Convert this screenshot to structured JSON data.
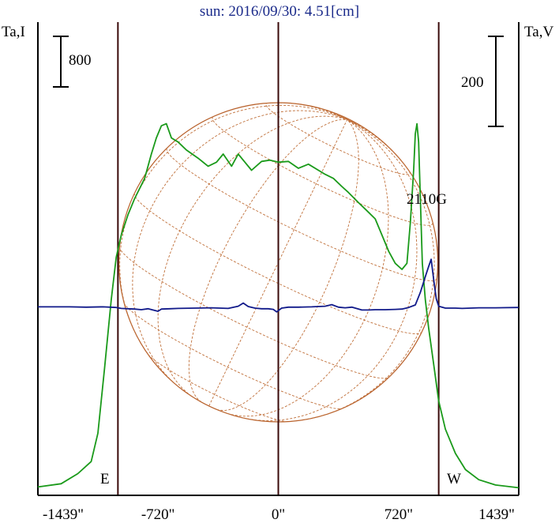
{
  "chart_data": {
    "type": "line",
    "title": "sun: 2016/09/30: 4.51[cm]",
    "left_axis_label": "Ta,I",
    "right_axis_label": "Ta,V",
    "left_scale_bar": "800",
    "right_scale_bar": "200",
    "annotation": "2110G",
    "east_label": "E",
    "west_label": "W",
    "x_ticks": [
      {
        "label": "-1439\"",
        "value": -1439
      },
      {
        "label": "-720\"",
        "value": -720
      },
      {
        "label": "0\"",
        "value": 0
      },
      {
        "label": "720\"",
        "value": 720
      },
      {
        "label": "1439\"",
        "value": 1439
      }
    ],
    "xlim": [
      -1439,
      1439
    ],
    "limb_markers": [
      -960,
      0,
      960
    ],
    "series": [
      {
        "color": "#1a9a1a",
        "points": [
          [
            -1439,
            7
          ],
          [
            -1300,
            15
          ],
          [
            -1200,
            40
          ],
          [
            -1120,
            70
          ],
          [
            -1080,
            140
          ],
          [
            -1040,
            300
          ],
          [
            -1000,
            470
          ],
          [
            -970,
            575
          ],
          [
            -940,
            630
          ],
          [
            -900,
            680
          ],
          [
            -860,
            720
          ],
          [
            -800,
            770
          ],
          [
            -760,
            830
          ],
          [
            -730,
            870
          ],
          [
            -700,
            900
          ],
          [
            -670,
            905
          ],
          [
            -640,
            870
          ],
          [
            -600,
            860
          ],
          [
            -550,
            840
          ],
          [
            -480,
            820
          ],
          [
            -420,
            800
          ],
          [
            -370,
            810
          ],
          [
            -330,
            830
          ],
          [
            -280,
            800
          ],
          [
            -240,
            830
          ],
          [
            -200,
            810
          ],
          [
            -160,
            790
          ],
          [
            -100,
            812
          ],
          [
            -50,
            815
          ],
          [
            0,
            810
          ],
          [
            60,
            812
          ],
          [
            120,
            795
          ],
          [
            180,
            805
          ],
          [
            240,
            790
          ],
          [
            280,
            780
          ],
          [
            330,
            770
          ],
          [
            380,
            750
          ],
          [
            420,
            735
          ],
          [
            480,
            710
          ],
          [
            530,
            690
          ],
          [
            580,
            670
          ],
          [
            620,
            630
          ],
          [
            660,
            590
          ],
          [
            700,
            560
          ],
          [
            740,
            545
          ],
          [
            770,
            560
          ],
          [
            790,
            660
          ],
          [
            810,
            790
          ],
          [
            820,
            880
          ],
          [
            830,
            905
          ],
          [
            840,
            860
          ],
          [
            850,
            720
          ],
          [
            862,
            560
          ],
          [
            880,
            470
          ],
          [
            900,
            400
          ],
          [
            930,
            310
          ],
          [
            960,
            220
          ],
          [
            1000,
            150
          ],
          [
            1060,
            90
          ],
          [
            1120,
            50
          ],
          [
            1200,
            25
          ],
          [
            1300,
            12
          ],
          [
            1439,
            5
          ]
        ]
      },
      {
        "color": "#111a8a",
        "points": [
          [
            -1439,
            4
          ],
          [
            -1250,
            4
          ],
          [
            -1150,
            3
          ],
          [
            -1050,
            4
          ],
          [
            -970,
            2
          ],
          [
            -940,
            -1
          ],
          [
            -900,
            -2
          ],
          [
            -860,
            -3
          ],
          [
            -820,
            -5
          ],
          [
            -780,
            -2
          ],
          [
            -720,
            -10
          ],
          [
            -700,
            -3
          ],
          [
            -650,
            -2
          ],
          [
            -600,
            -1
          ],
          [
            -500,
            0
          ],
          [
            -400,
            1
          ],
          [
            -300,
            -1
          ],
          [
            -240,
            6
          ],
          [
            -210,
            16
          ],
          [
            -180,
            5
          ],
          [
            -140,
            0
          ],
          [
            -100,
            -2
          ],
          [
            -60,
            -2
          ],
          [
            -30,
            -4
          ],
          [
            -10,
            -12
          ],
          [
            20,
            0
          ],
          [
            60,
            3
          ],
          [
            120,
            3
          ],
          [
            200,
            4
          ],
          [
            280,
            6
          ],
          [
            320,
            11
          ],
          [
            360,
            3
          ],
          [
            400,
            1
          ],
          [
            440,
            3
          ],
          [
            500,
            -6
          ],
          [
            540,
            -6
          ],
          [
            580,
            -5
          ],
          [
            640,
            -5
          ],
          [
            700,
            -4
          ],
          [
            740,
            -3
          ],
          [
            780,
            2
          ],
          [
            820,
            10
          ],
          [
            850,
            50
          ],
          [
            880,
            100
          ],
          [
            900,
            132
          ],
          [
            915,
            155
          ],
          [
            930,
            90
          ],
          [
            945,
            30
          ],
          [
            960,
            6
          ],
          [
            1000,
            0
          ],
          [
            1060,
            0
          ],
          [
            1100,
            -1
          ],
          [
            1200,
            1
          ],
          [
            1300,
            1
          ],
          [
            1439,
            2
          ]
        ]
      }
    ]
  }
}
